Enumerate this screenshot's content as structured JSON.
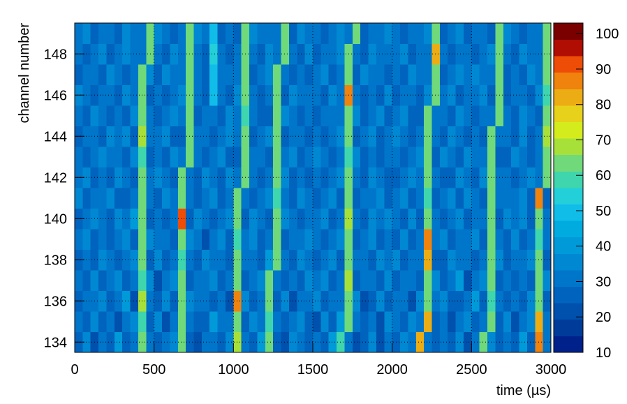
{
  "chart_data": {
    "type": "heatmap",
    "x_label": "time (µs)",
    "y_label": "channel number",
    "xbins": [
      0,
      50,
      100,
      150,
      200,
      250,
      300,
      350,
      400,
      450,
      500,
      550,
      600,
      650,
      700,
      750,
      800,
      850,
      900,
      950,
      1000,
      1050,
      1100,
      1150,
      1200,
      1250,
      1300,
      1350,
      1400,
      1450,
      1500,
      1550,
      1600,
      1650,
      1700,
      1750,
      1800,
      1850,
      1900,
      1950,
      2000,
      2050,
      2100,
      2150,
      2200,
      2250,
      2300,
      2350,
      2400,
      2450,
      2500,
      2550,
      2600,
      2650,
      2700,
      2750,
      2800,
      2850,
      2900,
      2950,
      3000
    ],
    "ybins": [
      133.5,
      134.5,
      135.5,
      136.5,
      137.5,
      138.5,
      139.5,
      140.5,
      141.5,
      142.5,
      143.5,
      144.5,
      145.5,
      146.5,
      147.5,
      148.5,
      149.5
    ],
    "xlim": [
      0,
      3000
    ],
    "ylim": [
      133.5,
      149.5
    ],
    "xticks": [
      0,
      500,
      1000,
      1500,
      2000,
      2500,
      3000
    ],
    "yticks": [
      134,
      136,
      138,
      140,
      142,
      144,
      146,
      148
    ],
    "zlim": [
      10,
      103
    ],
    "zticks": [
      10,
      20,
      30,
      40,
      50,
      60,
      70,
      80,
      90,
      100
    ],
    "grid": true,
    "palette": [
      "#00208a",
      "#003b99",
      "#0050ad",
      "#0063bd",
      "#0076cb",
      "#0088d3",
      "#009ad9",
      "#00abe0",
      "#10bde8",
      "#23cfd8",
      "#3fd6ad",
      "#70d97a",
      "#a8e03a",
      "#d5ec1c",
      "#e8d11a",
      "#ecad14",
      "#f0820e",
      "#ee4d08",
      "#b00d03",
      "#7a0000"
    ],
    "z": [
      [
        28,
        35,
        22,
        31,
        26,
        38,
        24,
        30,
        64,
        33,
        25,
        29,
        36,
        62,
        27,
        22,
        33,
        30,
        26,
        35,
        66,
        31,
        24,
        38,
        63,
        28,
        21,
        34,
        29,
        25,
        32,
        27,
        40,
        61,
        30,
        23,
        28,
        35,
        22,
        31,
        26,
        37,
        29,
        84,
        33,
        24,
        30,
        27,
        36,
        22,
        29,
        63,
        34,
        25,
        31,
        28,
        38,
        26,
        86,
        33
      ],
      [
        31,
        24,
        37,
        27,
        33,
        22,
        29,
        36,
        60,
        28,
        34,
        23,
        30,
        65,
        31,
        27,
        24,
        38,
        29,
        33,
        62,
        26,
        35,
        29,
        61,
        32,
        25,
        30,
        36,
        27,
        23,
        34,
        28,
        38,
        63,
        30,
        26,
        33,
        21,
        35,
        29,
        24,
        37,
        31,
        82,
        27,
        33,
        22,
        30,
        36,
        25,
        31,
        65,
        28,
        34,
        23,
        30,
        37,
        81,
        29
      ],
      [
        26,
        33,
        29,
        35,
        24,
        31,
        38,
        22,
        66,
        30,
        27,
        36,
        24,
        62,
        35,
        29,
        31,
        26,
        33,
        22,
        87,
        34,
        28,
        31,
        64,
        26,
        37,
        23,
        30,
        33,
        36,
        25,
        31,
        29,
        64,
        34,
        22,
        28,
        37,
        26,
        32,
        29,
        23,
        35,
        63,
        30,
        36,
        27,
        24,
        31,
        38,
        26,
        61,
        33,
        27,
        31,
        24,
        35,
        65,
        28
      ],
      [
        33,
        27,
        36,
        24,
        30,
        35,
        26,
        31,
        61,
        37,
        23,
        30,
        34,
        64,
        26,
        33,
        29,
        37,
        24,
        31,
        63,
        27,
        32,
        36,
        62,
        30,
        24,
        33,
        28,
        35,
        29,
        37,
        24,
        31,
        66,
        27,
        33,
        30,
        25,
        36,
        24,
        33,
        30,
        28,
        62,
        35,
        27,
        31,
        38,
        22,
        30,
        35,
        63,
        27,
        33,
        25,
        31,
        28,
        62,
        34
      ],
      [
        24,
        31,
        28,
        37,
        33,
        25,
        30,
        36,
        63,
        27,
        35,
        28,
        33,
        61,
        30,
        24,
        37,
        29,
        31,
        26,
        65,
        33,
        29,
        27,
        38,
        63,
        31,
        26,
        34,
        30,
        27,
        31,
        36,
        25,
        62,
        33,
        29,
        24,
        35,
        30,
        37,
        26,
        31,
        33,
        83,
        28,
        24,
        36,
        30,
        33,
        28,
        31,
        64,
        35,
        26,
        33,
        29,
        37,
        63,
        25
      ],
      [
        30,
        36,
        25,
        33,
        28,
        31,
        37,
        24,
        62,
        34,
        29,
        33,
        26,
        64,
        35,
        31,
        23,
        30,
        37,
        28,
        61,
        30,
        35,
        24,
        31,
        64,
        27,
        33,
        29,
        36,
        33,
        26,
        30,
        37,
        63,
        24,
        31,
        35,
        27,
        30,
        28,
        34,
        26,
        30,
        86,
        33,
        37,
        25,
        31,
        29,
        35,
        27,
        62,
        31,
        28,
        36,
        25,
        33,
        61,
        30
      ],
      [
        27,
        32,
        36,
        29,
        25,
        34,
        30,
        38,
        65,
        26,
        33,
        24,
        31,
        91,
        28,
        35,
        30,
        26,
        33,
        37,
        63,
        28,
        34,
        31,
        25,
        62,
        36,
        30,
        27,
        33,
        30,
        35,
        28,
        33,
        66,
        31,
        25,
        34,
        29,
        37,
        31,
        28,
        35,
        24,
        64,
        30,
        27,
        33,
        36,
        25,
        33,
        29,
        63,
        26,
        37,
        30,
        34,
        28,
        64,
        31
      ],
      [
        35,
        26,
        30,
        33,
        37,
        28,
        24,
        31,
        62,
        33,
        26,
        37,
        29,
        63,
        31,
        24,
        33,
        36,
        28,
        30,
        64,
        33,
        27,
        30,
        36,
        61,
        29,
        24,
        35,
        31,
        24,
        30,
        36,
        28,
        62,
        27,
        33,
        30,
        37,
        26,
        33,
        36,
        28,
        31,
        61,
        25,
        30,
        37,
        28,
        34,
        30,
        24,
        65,
        33,
        29,
        31,
        37,
        26,
        85,
        28
      ],
      [
        29,
        34,
        27,
        31,
        24,
        36,
        33,
        28,
        64,
        30,
        37,
        30,
        25,
        62,
        33,
        28,
        36,
        31,
        24,
        35,
        31,
        63,
        33,
        26,
        30,
        64,
        37,
        28,
        31,
        24,
        33,
        28,
        31,
        35,
        63,
        30,
        26,
        37,
        31,
        28,
        25,
        31,
        37,
        30,
        65,
        33,
        28,
        24,
        35,
        30,
        27,
        35,
        62,
        30,
        33,
        26,
        31,
        36,
        30,
        64
      ],
      [
        33,
        25,
        31,
        36,
        29,
        33,
        27,
        35,
        61,
        28,
        31,
        26,
        34,
        30,
        63,
        30,
        27,
        33,
        36,
        25,
        28,
        62,
        30,
        33,
        27,
        65,
        31,
        35,
        24,
        33,
        36,
        30,
        24,
        31,
        61,
        35,
        28,
        31,
        26,
        33,
        30,
        26,
        33,
        37,
        62,
        28,
        34,
        30,
        27,
        36,
        33,
        30,
        63,
        28,
        25,
        34,
        31,
        27,
        33,
        62
      ],
      [
        26,
        33,
        30,
        24,
        35,
        31,
        36,
        27,
        66,
        33,
        30,
        35,
        28,
        24,
        62,
        31,
        33,
        26,
        30,
        37,
        33,
        64,
        28,
        31,
        35,
        63,
        27,
        30,
        33,
        26,
        30,
        27,
        33,
        36,
        64,
        25,
        31,
        34,
        28,
        30,
        37,
        30,
        27,
        33,
        63,
        31,
        26,
        35,
        30,
        28,
        31,
        26,
        64,
        33,
        30,
        28,
        35,
        24,
        31,
        66
      ],
      [
        31,
        28,
        35,
        33,
        26,
        30,
        24,
        36,
        62,
        31,
        28,
        31,
        36,
        30,
        64,
        27,
        33,
        31,
        25,
        35,
        30,
        61,
        33,
        27,
        24,
        62,
        36,
        30,
        28,
        33,
        27,
        33,
        30,
        31,
        65,
        36,
        24,
        30,
        35,
        27,
        31,
        35,
        24,
        28,
        64,
        30,
        33,
        27,
        36,
        31,
        28,
        33,
        30,
        62,
        31,
        26,
        34,
        30,
        27,
        63
      ],
      [
        35,
        30,
        26,
        31,
        33,
        28,
        37,
        30,
        63,
        27,
        33,
        26,
        31,
        35,
        65,
        30,
        28,
        48,
        33,
        26,
        36,
        63,
        30,
        24,
        33,
        62,
        27,
        35,
        31,
        30,
        33,
        28,
        36,
        30,
        85,
        31,
        27,
        33,
        25,
        36,
        28,
        31,
        33,
        26,
        35,
        64,
        30,
        37,
        28,
        33,
        30,
        36,
        27,
        64,
        28,
        33,
        31,
        24,
        35,
        61
      ],
      [
        28,
        33,
        31,
        27,
        36,
        33,
        25,
        31,
        64,
        35,
        26,
        35,
        29,
        31,
        62,
        33,
        27,
        50,
        30,
        31,
        33,
        65,
        27,
        31,
        36,
        64,
        30,
        26,
        33,
        28,
        30,
        35,
        27,
        33,
        63,
        28,
        35,
        31,
        30,
        26,
        33,
        28,
        36,
        31,
        30,
        62,
        27,
        33,
        35,
        30,
        36,
        31,
        33,
        65,
        27,
        31,
        28,
        36,
        30,
        64
      ],
      [
        33,
        27,
        30,
        36,
        28,
        31,
        35,
        30,
        33,
        62,
        31,
        28,
        36,
        30,
        64,
        31,
        25,
        52,
        33,
        27,
        30,
        63,
        31,
        28,
        35,
        31,
        62,
        33,
        28,
        36,
        27,
        31,
        33,
        36,
        64,
        30,
        28,
        35,
        31,
        33,
        30,
        36,
        28,
        33,
        31,
        84,
        30,
        26,
        33,
        31,
        28,
        33,
        36,
        63,
        30,
        27,
        35,
        31,
        33,
        65
      ],
      [
        30,
        35,
        28,
        33,
        31,
        26,
        36,
        33,
        30,
        63,
        35,
        30,
        27,
        33,
        62,
        36,
        30,
        49,
        28,
        33,
        26,
        62,
        35,
        30,
        31,
        33,
        64,
        28,
        36,
        30,
        33,
        28,
        30,
        35,
        31,
        63,
        27,
        33,
        30,
        36,
        31,
        27,
        33,
        30,
        36,
        62,
        28,
        31,
        35,
        27,
        33,
        30,
        28,
        62,
        35,
        31,
        27,
        33,
        30,
        64
      ]
    ]
  }
}
